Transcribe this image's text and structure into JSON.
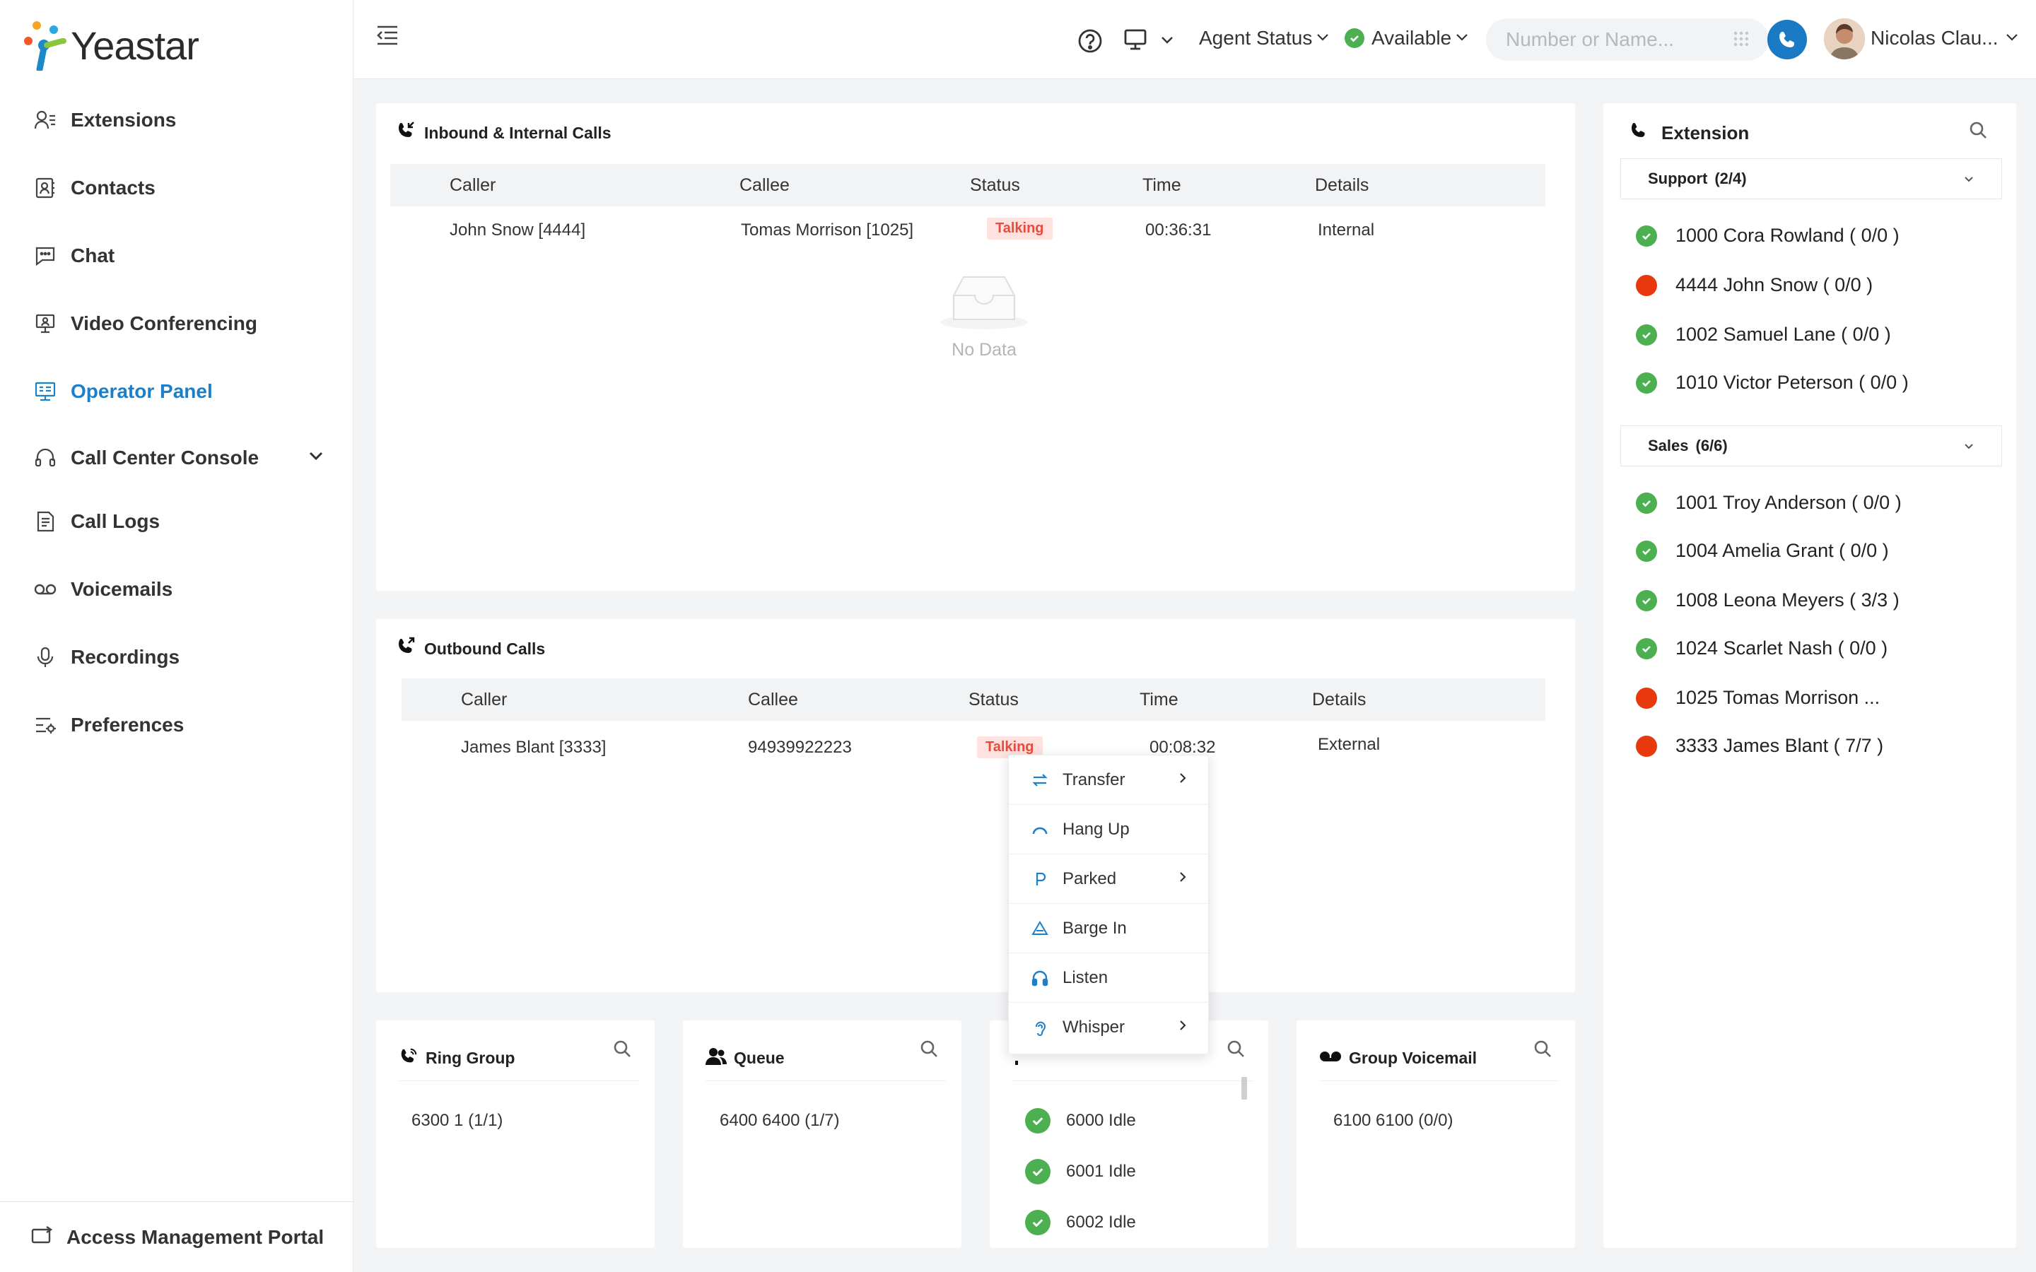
{
  "brand": {
    "name": "Yeastar"
  },
  "sidebar": {
    "items": [
      {
        "label": "Extensions",
        "icon": "extensions-icon"
      },
      {
        "label": "Contacts",
        "icon": "contacts-icon"
      },
      {
        "label": "Chat",
        "icon": "chat-icon"
      },
      {
        "label": "Video Conferencing",
        "icon": "video-conferencing-icon"
      },
      {
        "label": "Operator Panel",
        "icon": "operator-panel-icon",
        "active": true
      },
      {
        "label": "Call Center Console",
        "icon": "headset-icon",
        "expandable": true
      },
      {
        "label": "Call Logs",
        "icon": "call-logs-icon"
      },
      {
        "label": "Voicemails",
        "icon": "voicemail-icon"
      },
      {
        "label": "Recordings",
        "icon": "microphone-icon"
      },
      {
        "label": "Preferences",
        "icon": "preferences-icon"
      }
    ],
    "footer_label": "Access Management Portal"
  },
  "topbar": {
    "agent_status_label": "Agent Status",
    "available_label": "Available",
    "search_placeholder": "Number or Name...",
    "user_name": "Nicolas Clau..."
  },
  "inbound": {
    "title": "Inbound & Internal Calls",
    "columns": [
      "Caller",
      "Callee",
      "Status",
      "Time",
      "Details"
    ],
    "rows": [
      {
        "caller": "John Snow [4444]",
        "callee": "Tomas Morrison [1025]",
        "status": "Talking",
        "time": "00:36:31",
        "details": "Internal"
      }
    ],
    "empty_text": "No Data"
  },
  "outbound": {
    "title": "Outbound Calls",
    "columns": [
      "Caller",
      "Callee",
      "Status",
      "Time",
      "Details"
    ],
    "rows": [
      {
        "caller": "James Blant [3333]",
        "callee": "94939922223",
        "status": "Talking",
        "time": "00:08:32",
        "details": "External"
      }
    ]
  },
  "context_menu": {
    "items": [
      {
        "label": "Transfer",
        "icon": "transfer-icon",
        "submenu": true
      },
      {
        "label": "Hang Up",
        "icon": "hang-up-icon",
        "submenu": false
      },
      {
        "label": "Parked",
        "icon": "parked-icon",
        "submenu": true
      },
      {
        "label": "Barge In",
        "icon": "barge-in-icon",
        "submenu": false
      },
      {
        "label": "Listen",
        "icon": "headphones-icon",
        "submenu": false
      },
      {
        "label": "Whisper",
        "icon": "whisper-icon",
        "submenu": true
      }
    ]
  },
  "extension_panel": {
    "title": "Extension",
    "groups": [
      {
        "label": "Support",
        "count": "(2/4)",
        "items": [
          {
            "label": "1000 Cora Rowland ( 0/0 )",
            "status": "available"
          },
          {
            "label": "4444 John Snow ( 0/0 )",
            "status": "busy"
          },
          {
            "label": "1002 Samuel Lane ( 0/0 )",
            "status": "available"
          },
          {
            "label": "1010 Victor Peterson ( 0/0 )",
            "status": "available"
          }
        ]
      },
      {
        "label": "Sales",
        "count": "(6/6)",
        "items": [
          {
            "label": "1001 Troy Anderson ( 0/0 )",
            "status": "available"
          },
          {
            "label": "1004 Amelia Grant ( 0/0 )",
            "status": "available"
          },
          {
            "label": "1008 Leona Meyers ( 3/3 )",
            "status": "available"
          },
          {
            "label": "1024 Scarlet Nash ( 0/0 )",
            "status": "available"
          },
          {
            "label": "1025 Tomas Morrison ...",
            "status": "busy"
          },
          {
            "label": "3333 James Blant ( 7/7 )",
            "status": "busy"
          }
        ]
      }
    ]
  },
  "bottom_cards": {
    "ring_group": {
      "title": "Ring Group",
      "value": "6300 1 (1/1)"
    },
    "queue": {
      "title": "Queue",
      "value": "6400 6400 (1/7)"
    },
    "parking": {
      "items": [
        "6000 Idle",
        "6001 Idle",
        "6002 Idle"
      ]
    },
    "group_voicemail": {
      "title": "Group Voicemail",
      "value": "6100 6100 (0/0)"
    }
  },
  "colors": {
    "accent": "#1d7fc8",
    "available": "#4caf50",
    "busy": "#e8380d",
    "talking_bg": "#fde2e0",
    "talking_fg": "#e94b3c"
  }
}
